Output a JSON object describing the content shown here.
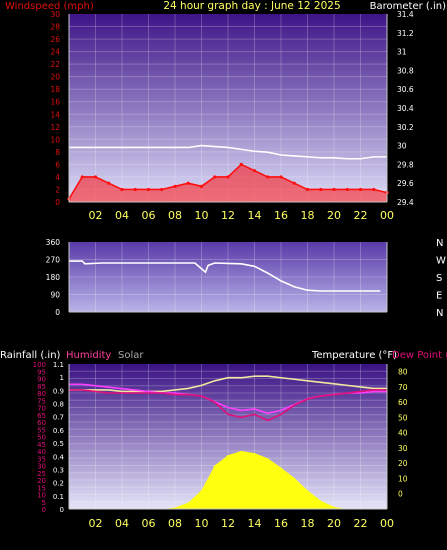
{
  "header": {
    "left_label": "Windspeed (mph)",
    "title": "24 hour graph day : June 12 2025",
    "right_label": "Barometer (.in)"
  },
  "panel3_header": {
    "rainfall": "Rainfall (.in)",
    "humidity": "Humidity",
    "solar": "Solar",
    "temperature": "Temperature (°F)",
    "dewpoint": "Dew Point ("
  },
  "colors": {
    "wind": "#ff1010",
    "barometer": "#ffffff",
    "winddir": "#ffffff",
    "humidity": "#ff40ff",
    "dewpoint": "#e0107a",
    "temperature": "#f2e6a0",
    "solar": "#ffff10",
    "axis_left": "#e01010",
    "axis_right": "#ffffff",
    "time_axis": "#ffff60"
  },
  "chart_data": [
    {
      "type": "line",
      "name": "wind_and_barometer",
      "x": [
        "00",
        "01",
        "02",
        "03",
        "04",
        "05",
        "06",
        "07",
        "08",
        "09",
        "10",
        "11",
        "12",
        "13",
        "14",
        "15",
        "16",
        "17",
        "18",
        "19",
        "20",
        "21",
        "22",
        "23",
        "24"
      ],
      "time_ticks": [
        "02",
        "04",
        "06",
        "08",
        "10",
        "12",
        "14",
        "16",
        "18",
        "20",
        "22",
        "00"
      ],
      "left_axis_ticks": [
        "30",
        "28",
        "26",
        "24",
        "22",
        "20",
        "18",
        "16",
        "14",
        "12",
        "10",
        "8",
        "6",
        "4",
        "2",
        "0"
      ],
      "right_axis_ticks": [
        "31.4",
        "31.2",
        "31",
        "30.8",
        "30.6",
        "30.4",
        "30.2",
        "30",
        "29.8",
        "29.6",
        "29.4"
      ],
      "ylim_left": [
        0,
        30
      ],
      "ylim_right": [
        29.4,
        31.4
      ],
      "series": [
        {
          "values": [
            0.5,
            4,
            4,
            3,
            2,
            2,
            2,
            2,
            2.5,
            3,
            2.5,
            4,
            4,
            6,
            5,
            4,
            4,
            3,
            2,
            2,
            2,
            2,
            2,
            2,
            1.5
          ]
        },
        {
          "values": [
            29.98,
            29.98,
            29.98,
            29.98,
            29.98,
            29.98,
            29.98,
            29.98,
            29.98,
            29.98,
            30.0,
            29.99,
            29.98,
            29.96,
            29.94,
            29.93,
            29.9,
            29.89,
            29.88,
            29.87,
            29.87,
            29.86,
            29.86,
            29.88,
            29.88
          ]
        }
      ]
    },
    {
      "type": "line",
      "name": "wind_direction",
      "time_ticks": [
        "02",
        "04",
        "06",
        "08",
        "10",
        "12",
        "14",
        "16",
        "18",
        "20",
        "22",
        "00"
      ],
      "left_axis_ticks": [
        "360",
        "270",
        "180",
        "90",
        "0"
      ],
      "right_axis_ticks": [
        "N",
        "W",
        "S",
        "E",
        "N"
      ],
      "ylim": [
        0,
        360
      ],
      "x": [
        0,
        1,
        1.2,
        2.5,
        4,
        6,
        8,
        9.5,
        10.3,
        10.5,
        11,
        12,
        13,
        14,
        15,
        16,
        17,
        18,
        19,
        20,
        22,
        23.5
      ],
      "values": [
        262,
        262,
        248,
        252,
        252,
        252,
        252,
        252,
        205,
        240,
        252,
        250,
        248,
        235,
        200,
        160,
        130,
        112,
        108,
        108,
        108,
        108
      ]
    },
    {
      "type": "line",
      "name": "rain_humidity_solar_temperature",
      "time_ticks": [
        "02",
        "04",
        "06",
        "08",
        "10",
        "12",
        "14",
        "16",
        "18",
        "20",
        "22",
        "00"
      ],
      "left_axis_ticks": [
        "100",
        "95",
        "90",
        "85",
        "80",
        "75",
        "70",
        "65",
        "60",
        "55",
        "50",
        "45",
        "40",
        "35",
        "30",
        "25",
        "20",
        "15",
        "10",
        "5",
        "0"
      ],
      "rain_axis_ticks": [
        "1.1",
        "1",
        "0.9",
        "0.8",
        "0.7",
        "0.6",
        "0.5",
        "0.4",
        "0.3",
        "0.2",
        "0.1",
        "0"
      ],
      "right_axis_ticks": [
        "80",
        "70",
        "60",
        "50",
        "40",
        "30",
        "20",
        "10",
        "0"
      ],
      "ylim_humidity": [
        0,
        100
      ],
      "ylim_rain": [
        0,
        1.1
      ],
      "ylim_temperature": [
        -10,
        85
      ],
      "x": [
        0,
        1,
        2,
        3,
        4,
        5,
        6,
        7,
        8,
        9,
        10,
        11,
        12,
        13,
        14,
        15,
        16,
        17,
        18,
        19,
        20,
        21,
        22,
        23,
        24
      ],
      "series": [
        {
          "values": [
            86,
            86,
            85,
            84,
            83,
            82,
            81,
            80,
            80,
            79,
            78,
            74,
            70,
            68,
            69,
            66,
            68,
            72,
            76,
            78,
            79,
            80,
            80,
            81,
            81
          ]
        },
        {
          "values": [
            68,
            68,
            67,
            66,
            66,
            66,
            66,
            66,
            65,
            65,
            64,
            60,
            52,
            50,
            52,
            48,
            52,
            58,
            62,
            64,
            65,
            66,
            67,
            68,
            68
          ]
        },
        {
          "values": [
            68,
            68,
            68,
            68,
            67,
            67,
            67,
            67,
            68,
            69,
            71,
            74,
            76,
            76,
            77,
            77,
            76,
            75,
            74,
            73,
            72,
            71,
            70,
            69,
            69
          ]
        },
        {
          "values": [
            0,
            0,
            0,
            0,
            0,
            0,
            0,
            0,
            15,
            60,
            180,
            420,
            520,
            560,
            540,
            490,
            400,
            300,
            180,
            80,
            20,
            0,
            0,
            0,
            0
          ]
        },
        {
          "values": [
            0,
            0,
            0,
            0,
            0,
            0,
            0,
            0,
            0,
            0,
            0,
            0,
            0,
            0,
            0,
            0,
            0,
            0,
            0,
            0,
            0,
            0,
            0,
            0,
            0
          ]
        }
      ]
    }
  ]
}
